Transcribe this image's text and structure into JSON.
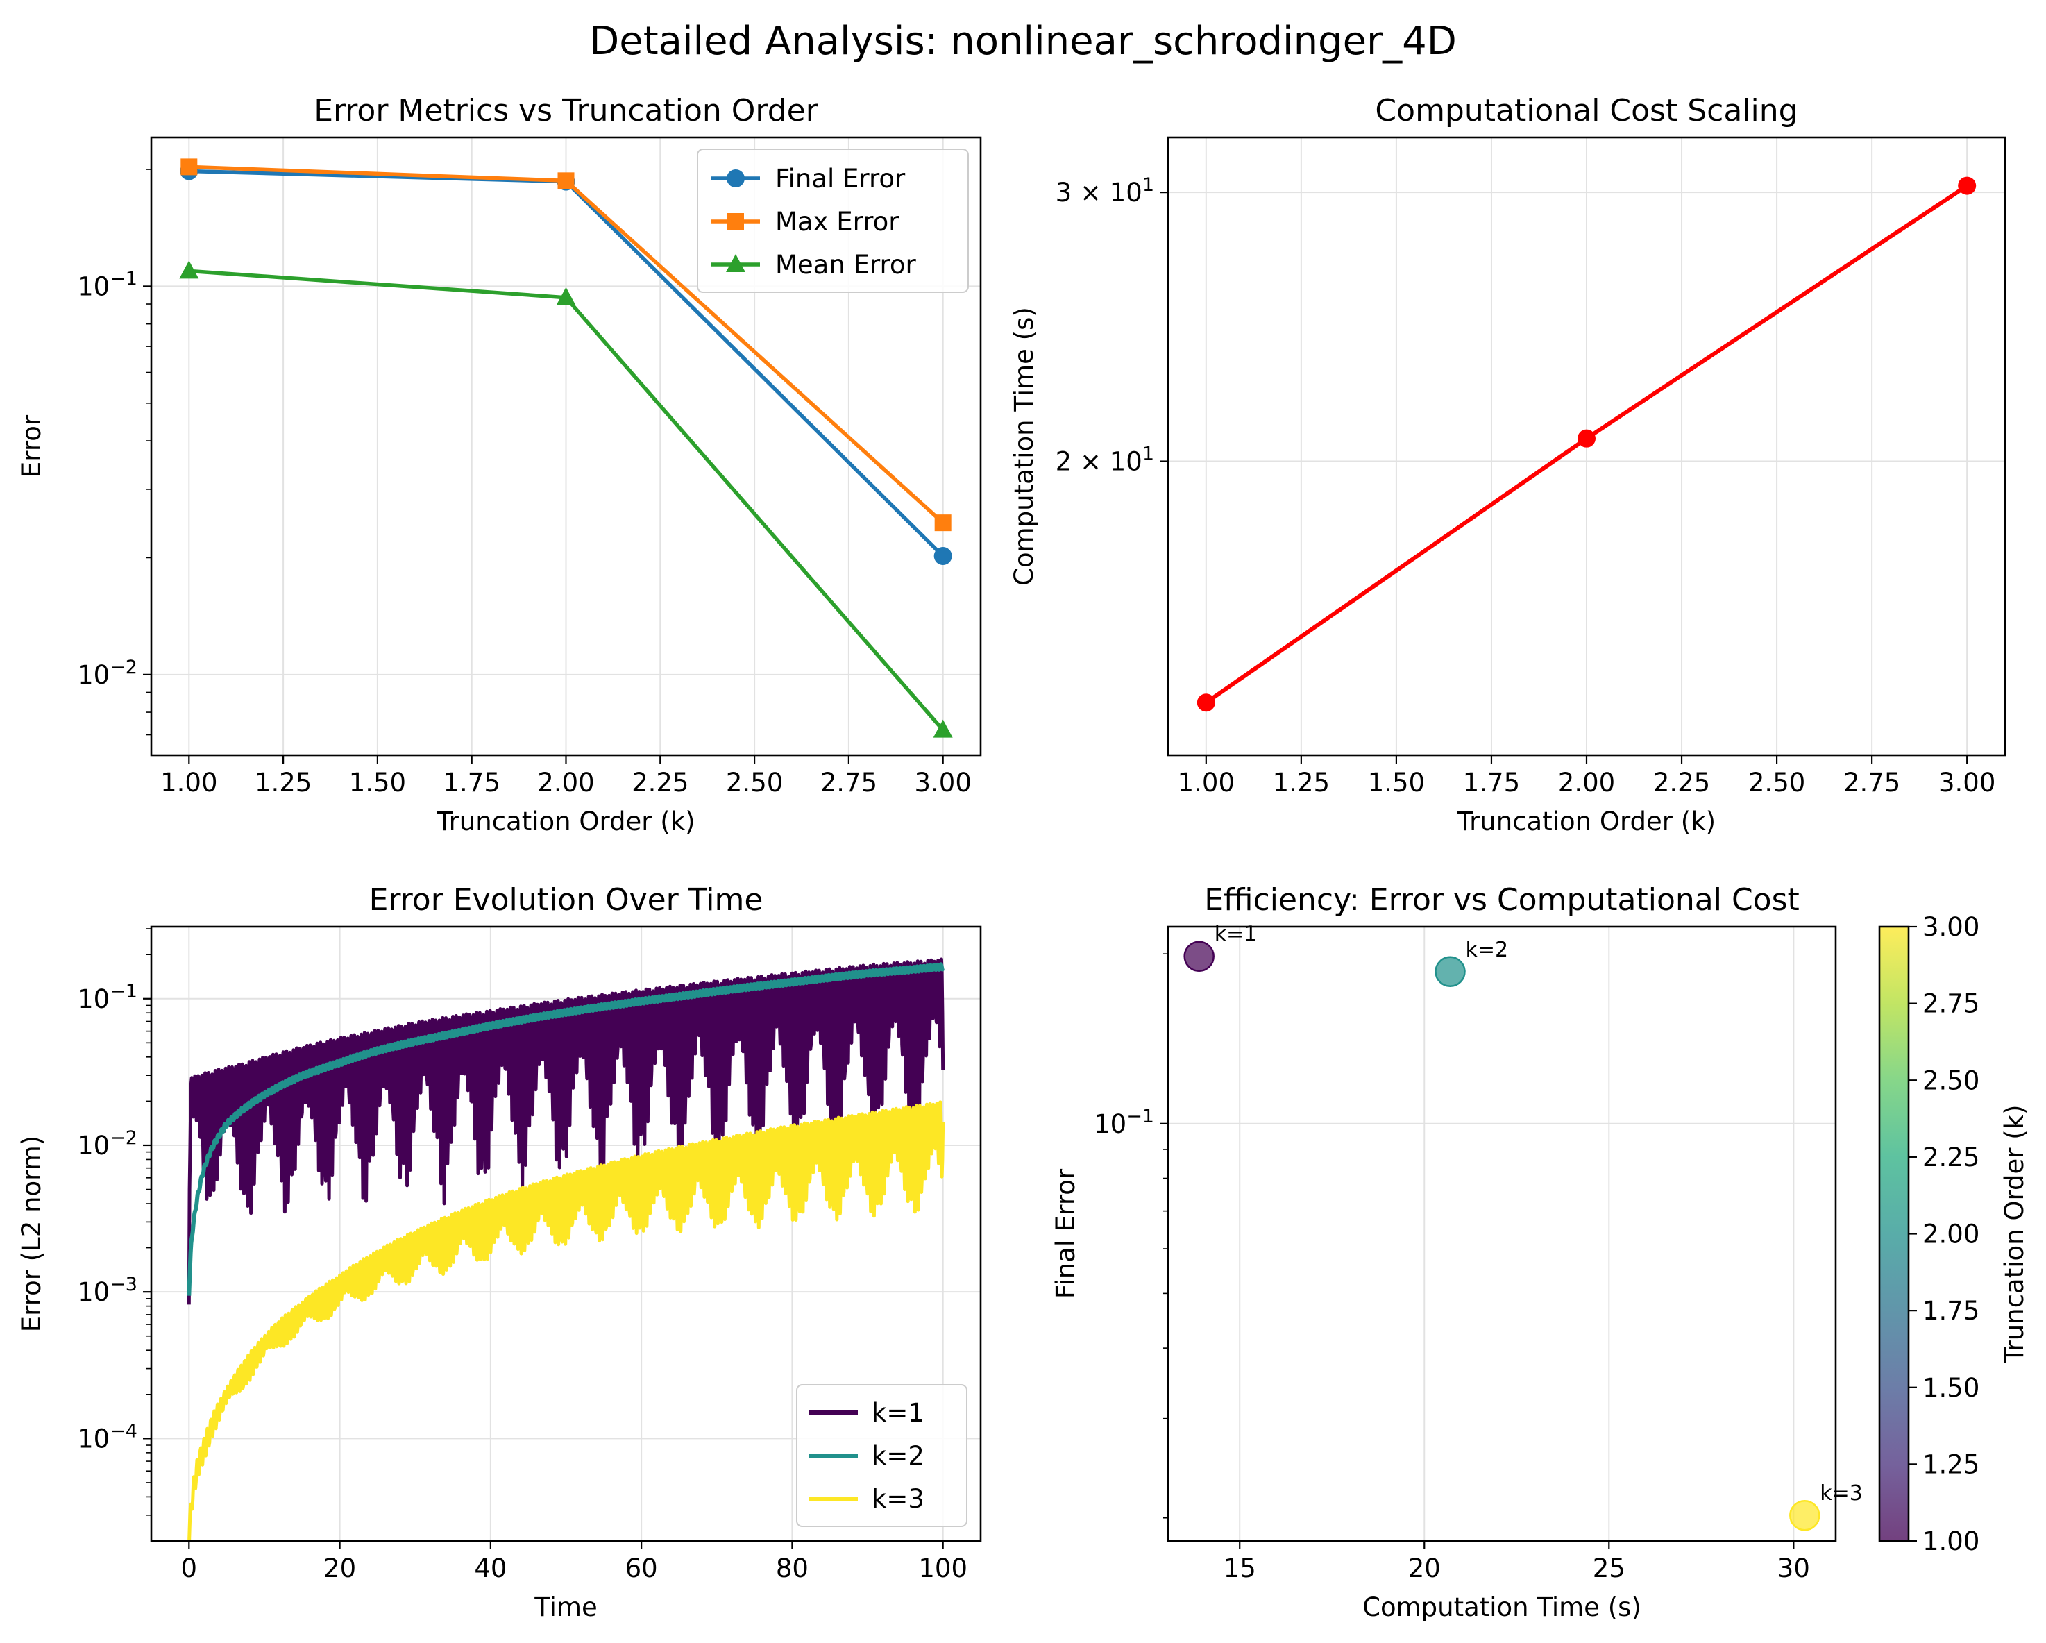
{
  "suptitle": "Detailed Analysis: nonlinear_schrodinger_4D",
  "chart_data": [
    {
      "id": "error_metrics",
      "type": "line",
      "title": "Error Metrics vs Truncation Order",
      "xlabel": "Truncation Order (k)",
      "ylabel": "Error",
      "yscale": "log",
      "xlim": [
        0.9,
        3.1
      ],
      "ylim": [
        0.0062,
        0.2417
      ],
      "xticks": [
        1.0,
        1.25,
        1.5,
        1.75,
        2.0,
        2.25,
        2.5,
        2.75,
        3.0
      ],
      "xtick_labels": [
        "1.00",
        "1.25",
        "1.50",
        "1.75",
        "2.00",
        "2.25",
        "2.50",
        "2.75",
        "3.00"
      ],
      "yticks": [
        0.01,
        0.1
      ],
      "ytick_labels": [
        {
          "base": "10",
          "exp": "−2"
        },
        {
          "base": "10",
          "exp": "−1"
        }
      ],
      "grid": true,
      "legend_position": "upper right",
      "x": [
        1,
        2,
        3
      ],
      "series": [
        {
          "name": "Final Error",
          "color": "#1f77b4",
          "marker": "circle",
          "values": [
            0.198,
            0.186,
            0.0202
          ]
        },
        {
          "name": "Max Error",
          "color": "#ff7f0e",
          "marker": "square",
          "values": [
            0.203,
            0.187,
            0.0246
          ]
        },
        {
          "name": "Mean Error",
          "color": "#2ca02c",
          "marker": "triangle",
          "values": [
            0.1095,
            0.0935,
            0.0072
          ]
        }
      ]
    },
    {
      "id": "cost_scaling",
      "type": "line",
      "title": "Computational Cost Scaling",
      "xlabel": "Truncation Order (k)",
      "ylabel": "Computation Time (s)",
      "yscale": "log",
      "xlim": [
        0.9,
        3.1
      ],
      "ylim": [
        12.84,
        32.59
      ],
      "xticks": [
        1.0,
        1.25,
        1.5,
        1.75,
        2.0,
        2.25,
        2.5,
        2.75,
        3.0
      ],
      "xtick_labels": [
        "1.00",
        "1.25",
        "1.50",
        "1.75",
        "2.00",
        "2.25",
        "2.50",
        "2.75",
        "3.00"
      ],
      "yticks": [
        20,
        30
      ],
      "ytick_labels": [
        {
          "base": "2 × 10",
          "exp": "1"
        },
        {
          "base": "3 × 10",
          "exp": "1"
        }
      ],
      "grid": true,
      "x": [
        1,
        2,
        3
      ],
      "series": [
        {
          "color": "#ff0000",
          "marker": "circle",
          "values": [
            13.9,
            20.7,
            30.3
          ]
        }
      ]
    },
    {
      "id": "error_evolution",
      "type": "line",
      "title": "Error Evolution Over Time",
      "xlabel": "Time",
      "ylabel": "Error (L2 norm)",
      "yscale": "log",
      "xlim": [
        -5,
        105
      ],
      "ylim": [
        2e-05,
        0.31
      ],
      "xticks": [
        0,
        20,
        40,
        60,
        80,
        100
      ],
      "xtick_labels": [
        "0",
        "20",
        "40",
        "60",
        "80",
        "100"
      ],
      "yticks": [
        0.0001,
        0.001,
        0.01,
        0.1
      ],
      "ytick_labels": [
        {
          "base": "10",
          "exp": "−4"
        },
        {
          "base": "10",
          "exp": "−3"
        },
        {
          "base": "10",
          "exp": "−2"
        },
        {
          "base": "10",
          "exp": "−1"
        }
      ],
      "grid": true,
      "legend_position": "lower right",
      "x": [
        0,
        0.3,
        1,
        2,
        3,
        5,
        7,
        10,
        15,
        20,
        25,
        30,
        35,
        40,
        45,
        50,
        55,
        60,
        65,
        70,
        75,
        80,
        85,
        90,
        95,
        100
      ],
      "series": [
        {
          "name": "k=1",
          "color": "#440154",
          "values": [
            0.001,
            0.029,
            0.03,
            0.031,
            0.032,
            0.034,
            0.036,
            0.04,
            0.047,
            0.054,
            0.061,
            0.069,
            0.076,
            0.083,
            0.091,
            0.099,
            0.107,
            0.115,
            0.123,
            0.132,
            0.141,
            0.15,
            0.16,
            0.17,
            0.178,
            0.186
          ],
          "band": [
            0.6,
            0.65,
            0.62,
            0.85,
            0.9,
            0.9,
            0.92,
            0.92,
            0.93,
            0.93,
            0.94,
            0.94,
            0.95,
            0.95,
            0.95,
            0.95,
            0.95,
            0.95,
            0.96,
            0.96,
            0.96,
            0.96,
            0.96,
            0.96,
            0.96,
            0.96
          ]
        },
        {
          "name": "k=2",
          "color": "#21918c",
          "values": [
            0.001,
            0.0022,
            0.0042,
            0.0072,
            0.0098,
            0.0145,
            0.018,
            0.023,
            0.031,
            0.038,
            0.046,
            0.053,
            0.06,
            0.068,
            0.076,
            0.084,
            0.092,
            0.1,
            0.108,
            0.117,
            0.126,
            0.135,
            0.145,
            0.155,
            0.163,
            0.172
          ],
          "band": [
            0.8,
            0.85,
            0.9,
            0.92,
            0.93,
            0.94,
            0.95,
            0.96,
            0.96,
            0.96,
            0.97,
            0.97,
            0.97,
            0.97,
            0.97,
            0.97,
            0.97,
            0.97,
            0.97,
            0.97,
            0.97,
            0.97,
            0.97,
            0.97,
            0.97,
            0.97
          ]
        },
        {
          "name": "k=3",
          "color": "#fde725",
          "values": [
            2.5e-05,
            4e-05,
            7e-05,
            0.0001,
            0.00014,
            0.00022,
            0.00032,
            0.0005,
            0.00085,
            0.0013,
            0.0019,
            0.0026,
            0.0034,
            0.0043,
            0.0053,
            0.0063,
            0.0074,
            0.0086,
            0.0098,
            0.011,
            0.0123,
            0.0137,
            0.0151,
            0.0166,
            0.0182,
            0.0198
          ],
          "band": [
            0.5,
            0.4,
            0.35,
            0.3,
            0.3,
            0.3,
            0.35,
            0.35,
            0.4,
            0.45,
            0.5,
            0.55,
            0.6,
            0.62,
            0.65,
            0.68,
            0.7,
            0.72,
            0.74,
            0.76,
            0.78,
            0.79,
            0.8,
            0.81,
            0.82,
            0.83
          ]
        }
      ]
    },
    {
      "id": "efficiency",
      "type": "scatter",
      "title": "Efficiency: Error vs Computational Cost",
      "xlabel": "Computation Time (s)",
      "ylabel": "Final Error",
      "yscale": "log",
      "xlim": [
        13.06,
        31.14
      ],
      "ylim": [
        0.0182,
        0.2235
      ],
      "xticks": [
        15,
        20,
        25,
        30
      ],
      "xtick_labels": [
        "15",
        "20",
        "25",
        "30"
      ],
      "yticks": [
        0.1
      ],
      "ytick_labels": [
        {
          "base": "10",
          "exp": "−1"
        }
      ],
      "grid": true,
      "points": [
        {
          "x": 13.9,
          "y": 0.198,
          "k": 1,
          "label": "k=1"
        },
        {
          "x": 20.7,
          "y": 0.186,
          "k": 2,
          "label": "k=2"
        },
        {
          "x": 30.3,
          "y": 0.0202,
          "k": 3,
          "label": "k=3"
        }
      ],
      "colorbar": {
        "label": "Truncation Order (k)",
        "range": [
          1.0,
          3.0
        ],
        "colormap": "viridis",
        "ticks": [
          1.0,
          1.25,
          1.5,
          1.75,
          2.0,
          2.25,
          2.5,
          2.75,
          3.0
        ],
        "tick_labels": [
          "1.00",
          "1.25",
          "1.50",
          "1.75",
          "2.00",
          "2.25",
          "2.50",
          "2.75",
          "3.00"
        ]
      }
    }
  ]
}
